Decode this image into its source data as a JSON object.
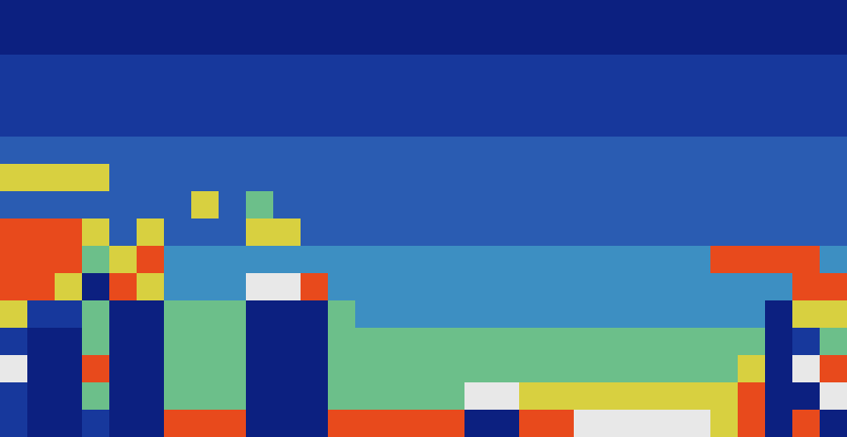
{
  "chart_data": {
    "type": "heatmap",
    "tick_labels": false,
    "zlim": [
      0,
      7
    ],
    "colors": [
      "#0c2080",
      "#17389c",
      "#2a5cb2",
      "#3d8fc2",
      "#6cbf8a",
      "#d8d040",
      "#e84a1c",
      "#e8e8e8"
    ],
    "cells": [
      [
        0,
        0,
        0,
        0,
        0,
        0,
        0,
        0,
        0,
        0,
        0,
        0,
        0,
        0,
        0,
        0,
        0,
        0,
        0,
        0,
        0,
        0,
        0,
        0,
        0,
        0,
        0,
        0,
        0,
        0,
        0
      ],
      [
        0,
        0,
        0,
        0,
        0,
        0,
        0,
        0,
        0,
        0,
        0,
        0,
        0,
        0,
        0,
        0,
        0,
        0,
        0,
        0,
        0,
        0,
        0,
        0,
        0,
        0,
        0,
        0,
        0,
        0,
        0
      ],
      [
        1,
        1,
        1,
        1,
        1,
        1,
        1,
        1,
        1,
        1,
        1,
        1,
        1,
        1,
        1,
        1,
        1,
        1,
        1,
        1,
        1,
        1,
        1,
        1,
        1,
        1,
        1,
        1,
        1,
        1,
        1
      ],
      [
        1,
        1,
        1,
        1,
        1,
        1,
        1,
        1,
        1,
        1,
        1,
        1,
        1,
        1,
        1,
        1,
        1,
        1,
        1,
        1,
        1,
        1,
        1,
        1,
        1,
        1,
        1,
        1,
        1,
        1,
        1
      ],
      [
        1,
        1,
        1,
        1,
        1,
        1,
        1,
        1,
        1,
        1,
        1,
        1,
        1,
        1,
        1,
        1,
        1,
        1,
        1,
        1,
        1,
        1,
        1,
        1,
        1,
        1,
        1,
        1,
        1,
        1,
        1
      ],
      [
        2,
        2,
        2,
        2,
        2,
        2,
        2,
        2,
        2,
        2,
        2,
        2,
        2,
        2,
        2,
        2,
        2,
        2,
        2,
        2,
        2,
        2,
        2,
        2,
        2,
        2,
        2,
        2,
        2,
        2,
        2
      ],
      [
        5,
        5,
        5,
        5,
        2,
        2,
        2,
        2,
        2,
        2,
        2,
        2,
        2,
        2,
        2,
        2,
        2,
        2,
        2,
        2,
        2,
        2,
        2,
        2,
        2,
        2,
        2,
        2,
        2,
        2,
        2
      ],
      [
        2,
        2,
        2,
        2,
        2,
        2,
        2,
        5,
        2,
        4,
        2,
        2,
        2,
        2,
        2,
        2,
        2,
        2,
        2,
        2,
        2,
        2,
        2,
        2,
        2,
        2,
        2,
        2,
        2,
        2,
        2
      ],
      [
        6,
        6,
        6,
        5,
        2,
        5,
        2,
        2,
        2,
        5,
        5,
        2,
        2,
        2,
        2,
        2,
        2,
        2,
        2,
        2,
        2,
        2,
        2,
        2,
        2,
        2,
        2,
        2,
        2,
        2,
        2
      ],
      [
        6,
        6,
        6,
        4,
        5,
        6,
        3,
        3,
        3,
        3,
        3,
        3,
        3,
        3,
        3,
        3,
        3,
        3,
        3,
        3,
        3,
        3,
        3,
        3,
        3,
        3,
        6,
        6,
        6,
        6,
        3
      ],
      [
        6,
        6,
        5,
        0,
        6,
        5,
        3,
        3,
        3,
        7,
        7,
        6,
        3,
        3,
        3,
        3,
        3,
        3,
        3,
        3,
        3,
        3,
        3,
        3,
        3,
        3,
        3,
        3,
        3,
        6,
        6
      ],
      [
        5,
        1,
        1,
        4,
        0,
        0,
        4,
        4,
        4,
        0,
        0,
        0,
        4,
        3,
        3,
        3,
        3,
        3,
        3,
        3,
        3,
        3,
        3,
        3,
        3,
        3,
        3,
        3,
        0,
        5,
        5
      ],
      [
        1,
        0,
        0,
        4,
        0,
        0,
        4,
        4,
        4,
        0,
        0,
        0,
        4,
        4,
        4,
        4,
        4,
        4,
        4,
        4,
        4,
        4,
        4,
        4,
        4,
        4,
        4,
        4,
        0,
        1,
        4
      ],
      [
        7,
        0,
        0,
        6,
        0,
        0,
        4,
        4,
        4,
        0,
        0,
        0,
        4,
        4,
        4,
        4,
        4,
        4,
        4,
        4,
        4,
        4,
        4,
        4,
        4,
        4,
        4,
        5,
        0,
        7,
        6
      ],
      [
        1,
        0,
        0,
        4,
        0,
        0,
        4,
        4,
        4,
        0,
        0,
        0,
        4,
        4,
        4,
        4,
        4,
        7,
        7,
        5,
        5,
        5,
        5,
        5,
        5,
        5,
        5,
        6,
        0,
        0,
        7
      ],
      [
        1,
        0,
        0,
        1,
        0,
        0,
        6,
        6,
        6,
        0,
        0,
        0,
        6,
        6,
        6,
        6,
        6,
        0,
        0,
        6,
        6,
        7,
        7,
        7,
        7,
        7,
        5,
        6,
        0,
        6,
        0
      ]
    ]
  }
}
